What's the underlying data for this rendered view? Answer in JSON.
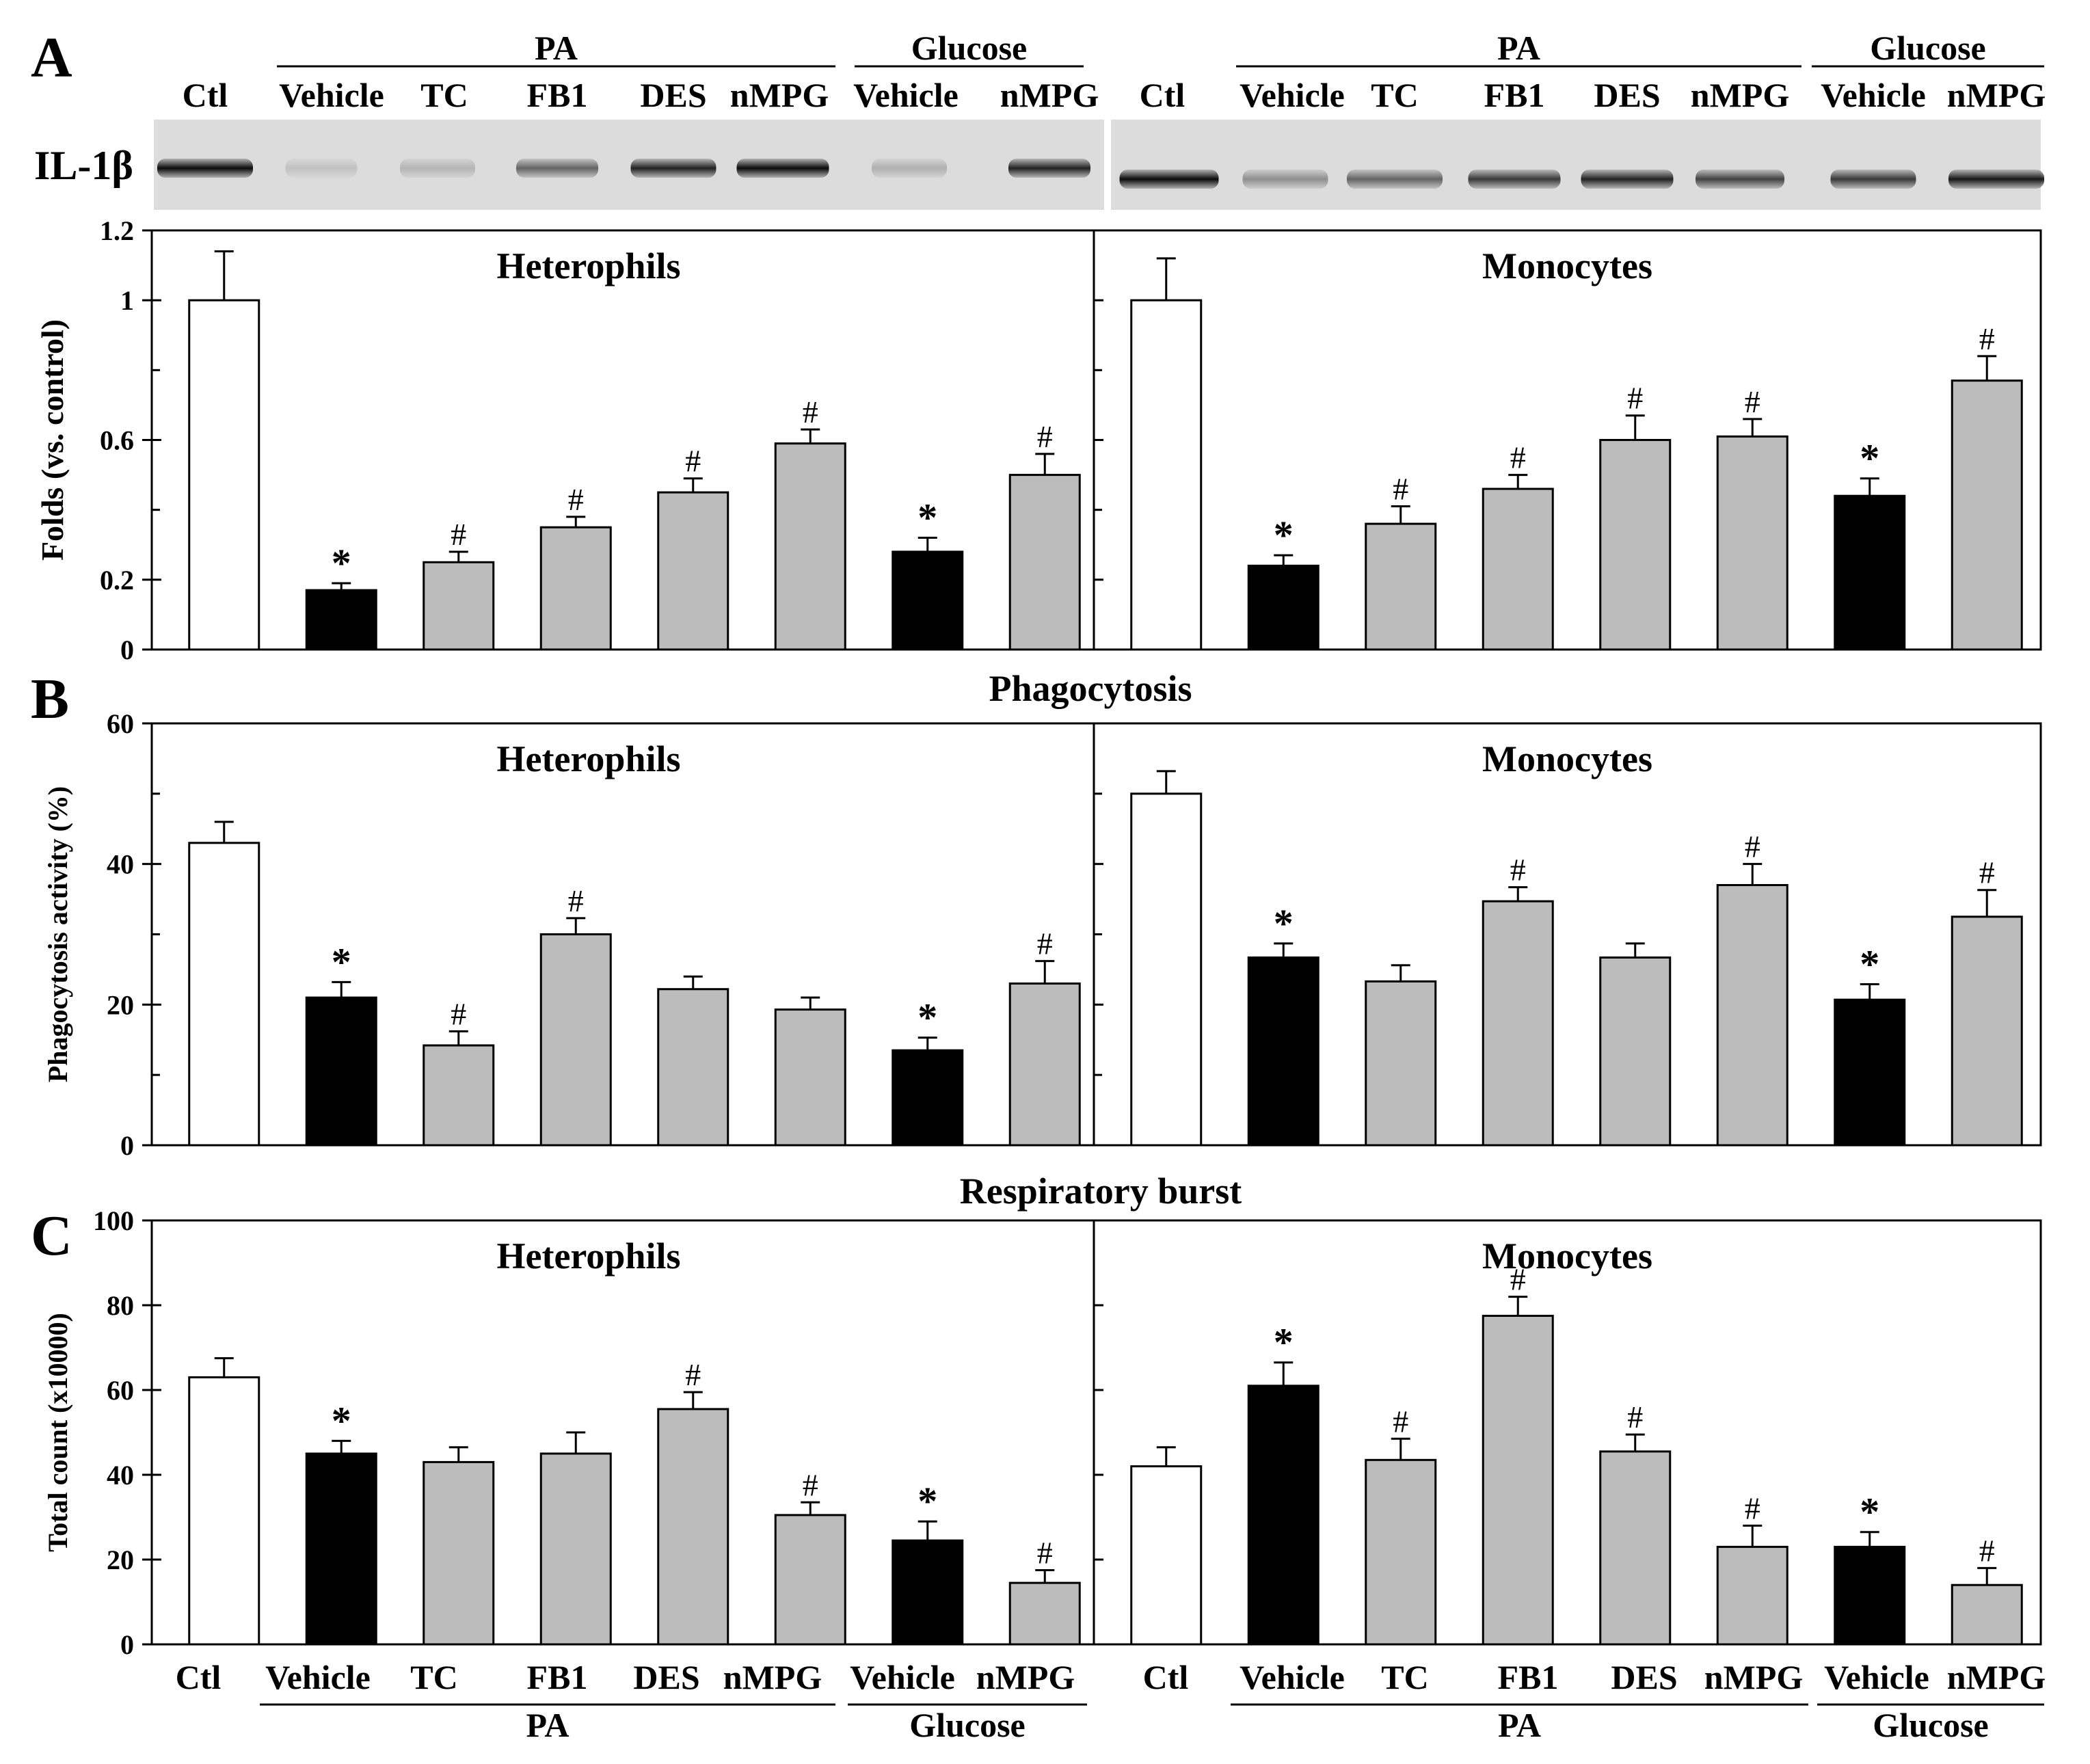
{
  "panel_letters": {
    "a": "A",
    "b": "B",
    "c": "C"
  },
  "blot": {
    "label": "IL-1β"
  },
  "group_labels": {
    "pa": "PA",
    "glucose": "Glucose"
  },
  "chart_data": [
    {
      "id": "A-heterophils",
      "panel": "A",
      "type": "bar",
      "title": "Heterophils",
      "ylabel": "Folds (vs. control)",
      "ylim": [
        0,
        1.2
      ],
      "ticks": [
        0,
        0.2,
        0.6,
        1,
        1.2
      ],
      "categories": [
        "Ctl",
        "Vehicle",
        "TC",
        "FB1",
        "DES",
        "nMPG",
        "Vehicle",
        "nMPG"
      ],
      "groups": [
        "",
        "PA",
        "PA",
        "PA",
        "PA",
        "PA",
        "Glucose",
        "Glucose"
      ],
      "values": [
        1.0,
        0.17,
        0.25,
        0.35,
        0.45,
        0.59,
        0.28,
        0.5
      ],
      "errors": [
        0.14,
        0.02,
        0.03,
        0.03,
        0.04,
        0.04,
        0.04,
        0.06
      ],
      "colors": [
        "white",
        "black",
        "gray",
        "gray",
        "gray",
        "gray",
        "black",
        "gray"
      ],
      "marks": [
        "",
        "*",
        "#",
        "#",
        "#",
        "#",
        "*",
        "#"
      ]
    },
    {
      "id": "A-monocytes",
      "panel": "A",
      "type": "bar",
      "title": "Monocytes",
      "ylabel": "",
      "ylim": [
        0,
        1.2
      ],
      "ticks": [],
      "categories": [
        "Ctl",
        "Vehicle",
        "TC",
        "FB1",
        "DES",
        "nMPG",
        "Vehicle",
        "nMPG"
      ],
      "groups": [
        "",
        "PA",
        "PA",
        "PA",
        "PA",
        "PA",
        "Glucose",
        "Glucose"
      ],
      "values": [
        1.0,
        0.24,
        0.36,
        0.46,
        0.6,
        0.61,
        0.44,
        0.77
      ],
      "errors": [
        0.12,
        0.03,
        0.05,
        0.04,
        0.07,
        0.05,
        0.05,
        0.07
      ],
      "colors": [
        "white",
        "black",
        "gray",
        "gray",
        "gray",
        "gray",
        "black",
        "gray"
      ],
      "marks": [
        "",
        "*",
        "#",
        "#",
        "#",
        "#",
        "*",
        "#"
      ]
    },
    {
      "id": "B-heterophils",
      "panel": "B",
      "type": "bar",
      "title": "Heterophils",
      "ylabel": "Phagocytosis activity (%)",
      "ylim": [
        0,
        60
      ],
      "ticks": [
        0,
        20,
        40,
        60
      ],
      "categories": [
        "Ctl",
        "Vehicle",
        "TC",
        "FB1",
        "DES",
        "nMPG",
        "Vehicle",
        "nMPG"
      ],
      "groups": [
        "",
        "PA",
        "PA",
        "PA",
        "PA",
        "PA",
        "Glucose",
        "Glucose"
      ],
      "values": [
        43,
        21,
        14.2,
        30,
        22.2,
        19.3,
        13.5,
        23
      ],
      "errors": [
        3,
        2.2,
        2,
        2.3,
        1.8,
        1.7,
        1.8,
        3.2
      ],
      "colors": [
        "white",
        "black",
        "gray",
        "gray",
        "gray",
        "gray",
        "black",
        "gray"
      ],
      "marks": [
        "",
        "*",
        "#",
        "#",
        "",
        "",
        "*",
        "#"
      ]
    },
    {
      "id": "B-monocytes",
      "panel": "B",
      "type": "bar",
      "title": "Monocytes",
      "ylabel": "",
      "ylim": [
        0,
        60
      ],
      "ticks": [],
      "categories": [
        "Ctl",
        "Vehicle",
        "TC",
        "FB1",
        "DES",
        "nMPG",
        "Vehicle",
        "nMPG"
      ],
      "groups": [
        "",
        "PA",
        "PA",
        "PA",
        "PA",
        "PA",
        "Glucose",
        "Glucose"
      ],
      "values": [
        50,
        26.7,
        23.3,
        34.7,
        26.7,
        37,
        20.7,
        32.5
      ],
      "errors": [
        3.2,
        2,
        2.3,
        2,
        2,
        3,
        2.2,
        3.8
      ],
      "colors": [
        "white",
        "black",
        "gray",
        "gray",
        "gray",
        "gray",
        "black",
        "gray"
      ],
      "marks": [
        "",
        "*",
        "",
        "#",
        "",
        "#",
        "*",
        "#"
      ]
    },
    {
      "id": "C-heterophils",
      "panel": "C",
      "type": "bar",
      "title": "Heterophils",
      "ylabel": "Total count (x10000)",
      "ylim": [
        0,
        100
      ],
      "ticks": [
        0,
        20,
        40,
        60,
        80,
        100
      ],
      "categories": [
        "Ctl",
        "Vehicle",
        "TC",
        "FB1",
        "DES",
        "nMPG",
        "Vehicle",
        "nMPG"
      ],
      "groups": [
        "",
        "PA",
        "PA",
        "PA",
        "PA",
        "PA",
        "Glucose",
        "Glucose"
      ],
      "values": [
        63,
        45,
        43,
        45,
        55.5,
        30.5,
        24.5,
        14.5
      ],
      "errors": [
        4.5,
        3,
        3.5,
        5,
        4,
        3,
        4.5,
        3
      ],
      "colors": [
        "white",
        "black",
        "gray",
        "gray",
        "gray",
        "gray",
        "black",
        "gray"
      ],
      "marks": [
        "",
        "*",
        "",
        "",
        "#",
        "#",
        "*",
        "#"
      ]
    },
    {
      "id": "C-monocytes",
      "panel": "C",
      "type": "bar",
      "title": "Monocytes",
      "ylabel": "",
      "ylim": [
        0,
        100
      ],
      "ticks": [],
      "categories": [
        "Ctl",
        "Vehicle",
        "TC",
        "FB1",
        "DES",
        "nMPG",
        "Vehicle",
        "nMPG"
      ],
      "groups": [
        "",
        "PA",
        "PA",
        "PA",
        "PA",
        "PA",
        "Glucose",
        "Glucose"
      ],
      "values": [
        42,
        61,
        43.5,
        77.5,
        45.5,
        23,
        23,
        14
      ],
      "errors": [
        4.5,
        5.5,
        5,
        4.5,
        4,
        5,
        3.5,
        4
      ],
      "colors": [
        "white",
        "black",
        "gray",
        "gray",
        "gray",
        "gray",
        "black",
        "gray"
      ],
      "marks": [
        "",
        "*",
        "#",
        "#",
        "#",
        "#",
        "*",
        "#"
      ]
    }
  ],
  "section_titles": {
    "b": "Phagocytosis",
    "c": "Respiratory burst"
  },
  "blot_labels": {
    "left": [
      "Ctl",
      "Vehicle",
      "TC",
      "FB1",
      "DES",
      "nMPG",
      "Vehicle",
      "nMPG"
    ],
    "right": [
      "Ctl",
      "Vehicle",
      "TC",
      "FB1",
      "DES",
      "nMPG",
      "Vehicle",
      "nMPG"
    ]
  },
  "bottom_labels": {
    "left": [
      "Ctl",
      "Vehicle",
      "TC",
      "FB1",
      "DES",
      "nMPG",
      "Vehicle",
      "nMPG"
    ],
    "right": [
      "Ctl",
      "Vehicle",
      "TC",
      "FB1",
      "DES",
      "nMPG",
      "Vehicle",
      "nMPG"
    ]
  },
  "colors": {
    "black_bar": "#000000",
    "gray_bar": "#bcbcbc",
    "white_bar": "#ffffff",
    "frame": "#000000"
  }
}
